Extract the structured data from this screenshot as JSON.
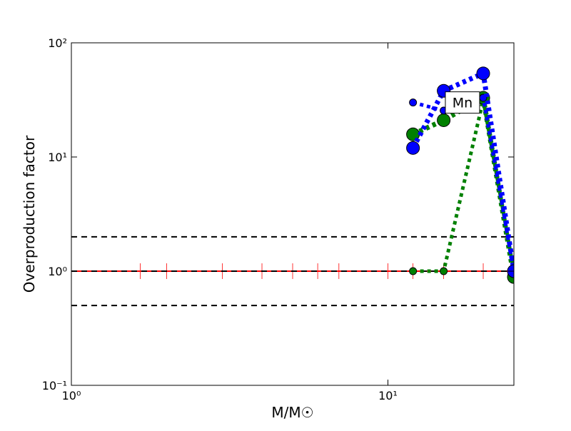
{
  "chart_data": {
    "type": "line",
    "xlabel": "M/M☉",
    "ylabel": "Overproduction factor",
    "xscale": "log",
    "yscale": "log",
    "xlim": [
      1,
      25
    ],
    "ylim": [
      0.1,
      100
    ],
    "xticks": [
      {
        "value": 1,
        "label": "10⁰"
      },
      {
        "value": 10,
        "label": "10¹"
      }
    ],
    "yticks": [
      {
        "value": 0.1,
        "label": "10⁻¹"
      },
      {
        "value": 1,
        "label": "10⁰"
      },
      {
        "value": 10,
        "label": "10¹"
      },
      {
        "value": 100,
        "label": "10²"
      }
    ],
    "hlines": {
      "values": [
        2,
        1,
        0.5
      ],
      "color": "#000000",
      "line": "dashed"
    },
    "series": [
      {
        "color": "#ff0000",
        "line": "solid",
        "marker": "vline",
        "x": [
          1,
          1.65,
          2,
          3,
          4,
          5,
          6,
          7,
          10,
          12,
          15,
          20,
          25
        ],
        "values": [
          1,
          1,
          1,
          1,
          1,
          1,
          1,
          1,
          1,
          1,
          1,
          1,
          1
        ]
      },
      {
        "color": "#008000",
        "line": "dotted",
        "marker": "small",
        "x": [
          12,
          15,
          20,
          25
        ],
        "values": [
          1,
          1,
          31.6,
          1
        ]
      },
      {
        "color": "#008000",
        "line": "dotted",
        "marker": "large",
        "x": [
          12,
          15,
          20,
          25
        ],
        "values": [
          15.8,
          21,
          33,
          0.89
        ]
      },
      {
        "color": "#0000ff",
        "line": "dotted",
        "marker": "small",
        "x": [
          12,
          15,
          20,
          25
        ],
        "values": [
          30,
          25.5,
          33,
          1
        ]
      },
      {
        "color": "#0000ff",
        "line": "dotted",
        "marker": "large",
        "x": [
          12,
          15,
          20,
          25
        ],
        "values": [
          12,
          38,
          54,
          1
        ]
      }
    ],
    "annotation": {
      "text": "Mn",
      "x": 17.2,
      "y": 30
    }
  }
}
